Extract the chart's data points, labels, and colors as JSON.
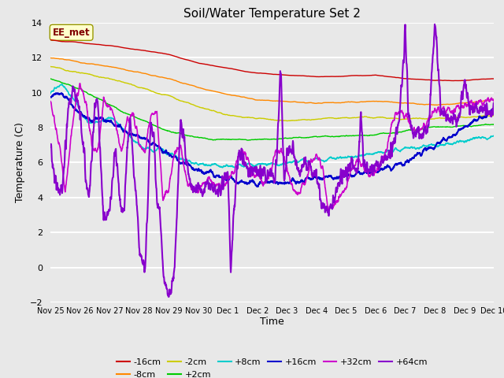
{
  "title": "Soil/Water Temperature Set 2",
  "xlabel": "Time",
  "ylabel": "Temperature (C)",
  "ylim": [
    -2,
    14
  ],
  "yticks": [
    -2,
    0,
    2,
    4,
    6,
    8,
    10,
    12,
    14
  ],
  "annotation": "EE_met",
  "bg_color": "#e8e8e8",
  "xtick_labels": [
    "Nov 25",
    "Nov 26",
    "Nov 27",
    "Nov 28",
    "Nov 29",
    "Nov 30",
    "Dec 1",
    "Dec 2",
    "Dec 3",
    "Dec 4",
    "Dec 5",
    "Dec 6",
    "Dec 7",
    "Dec 8",
    "Dec 9",
    "Dec 10"
  ],
  "series": [
    {
      "label": "-16cm",
      "color": "#cc0000"
    },
    {
      "label": "-8cm",
      "color": "#ff8800"
    },
    {
      "label": "-2cm",
      "color": "#cccc00"
    },
    {
      "label": "+2cm",
      "color": "#00cc00"
    },
    {
      "label": "+8cm",
      "color": "#00cccc"
    },
    {
      "label": "+16cm",
      "color": "#0000cc"
    },
    {
      "label": "+32cm",
      "color": "#cc00cc"
    },
    {
      "label": "+64cm",
      "color": "#8800cc"
    }
  ]
}
